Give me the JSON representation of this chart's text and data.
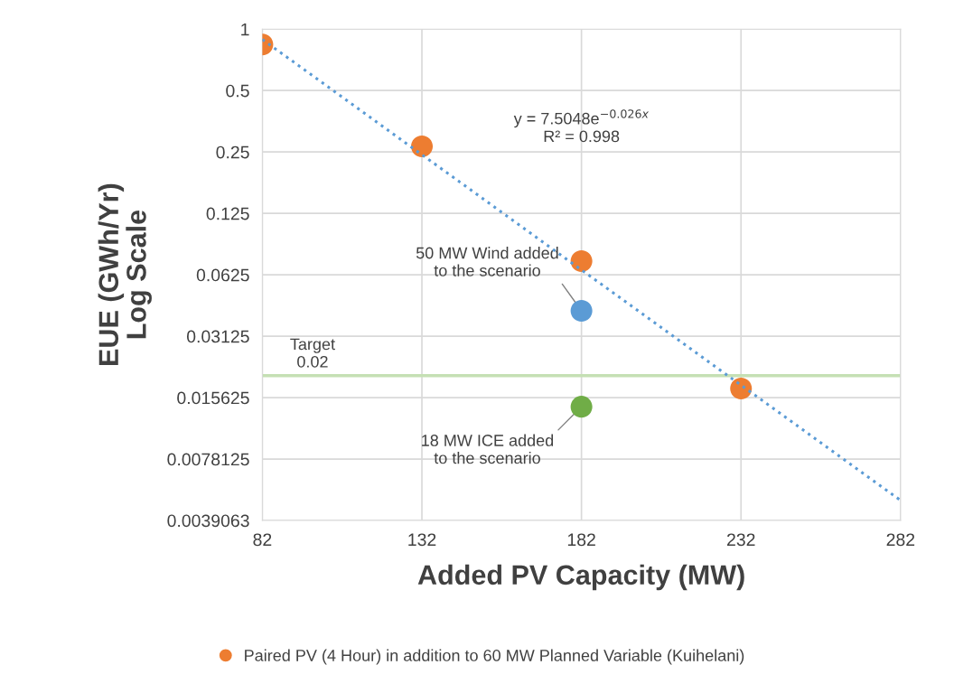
{
  "chart_data": {
    "type": "scatter",
    "xlabel": "Added PV Capacity (MW)",
    "ylabel": "EUE (GWh/Yr)\nLog Scale",
    "x": [
      82,
      132,
      182,
      232
    ],
    "series": [
      {
        "name": "Paired PV (4 Hour) in addition to 60 MW Planned Variable (Kuihelani)",
        "color": "#ed7d31",
        "values": [
          0.84,
          0.266,
          0.0729,
          0.0173
        ]
      },
      {
        "color": "#5b9bd5",
        "x": [
          182
        ],
        "values": [
          0.0416
        ]
      },
      {
        "color": "#70ad47",
        "x": [
          182
        ],
        "values": [
          0.0141
        ]
      },
      {
        "type": "line",
        "color": "#5b9bd5",
        "x": [
          82,
          282
        ],
        "values": [
          0.89,
          0.0049
        ],
        "line_style": "dotted",
        "marker": "none"
      }
    ],
    "marker": "circle",
    "log": "y",
    "xlim": [
      82,
      282
    ],
    "xticks": [
      82,
      132,
      182,
      232,
      282
    ],
    "ylim": [
      0.0039063,
      1
    ],
    "yticks": [
      0.0039063,
      0.0078125,
      0.015625,
      0.03125,
      0.0625,
      0.125,
      0.25,
      0.5,
      1
    ],
    "ref_lines": [
      {
        "axis": "y",
        "value": 0.02,
        "label": "Target\n0.02",
        "color": "#c5e0b4"
      }
    ],
    "annotations": [
      "y = 7.5048e$^{−0.026x}$\nR² = 0.998",
      {
        "text": "50 MW Wind added\nto the scenario",
        "x": 182,
        "y": 0.0416
      },
      {
        "text": "18 MW ICE added\nto the scenario",
        "x": 182,
        "y": 0.0141
      }
    ],
    "grid": true,
    "legend": "bottom"
  }
}
